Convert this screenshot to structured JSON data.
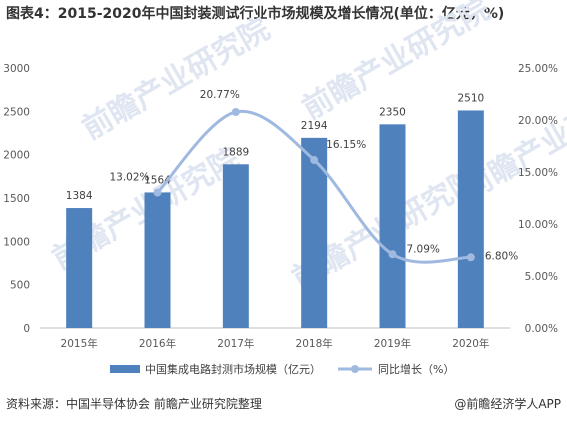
{
  "title": "图表4：2015-2020年中国封装测试行业市场规模及增长情况(单位：亿元，%)",
  "chart_data": {
    "type": "bar",
    "categories": [
      "2015年",
      "2016年",
      "2017年",
      "2018年",
      "2019年",
      "2020年"
    ],
    "series": [
      {
        "name": "中国集成电路封测市场规模（亿元）",
        "type": "bar",
        "axis": "left",
        "values": [
          1384,
          1564,
          1889,
          2194,
          2350,
          2510
        ],
        "labels": [
          "1384",
          "1564",
          "1889",
          "2194",
          "2350",
          "2510"
        ]
      },
      {
        "name": "同比增长（%）",
        "type": "line",
        "axis": "right",
        "values": [
          null,
          13.02,
          20.77,
          16.15,
          7.09,
          6.8
        ],
        "labels": [
          "",
          "13.02%",
          "20.77%",
          "16.15%",
          "7.09%",
          "6.80%"
        ]
      }
    ],
    "y_left": {
      "min": 0,
      "max": 3000,
      "ticks": [
        "0",
        "500",
        "1000",
        "1500",
        "2000",
        "2500",
        "3000"
      ]
    },
    "y_right": {
      "min": 0,
      "max": 25,
      "ticks": [
        "0.00%",
        "5.00%",
        "10.00%",
        "15.00%",
        "20.00%",
        "25.00%"
      ]
    },
    "grid": false,
    "legend": "bottom",
    "colors": {
      "bar": "#4f81bd",
      "line": "#9fb9e0"
    }
  },
  "footer": {
    "source": "资料来源：中国半导体协会 前瞻产业研究院整理",
    "brand": "@前瞻经济学人APP"
  },
  "watermark": "前瞻产业研究院"
}
